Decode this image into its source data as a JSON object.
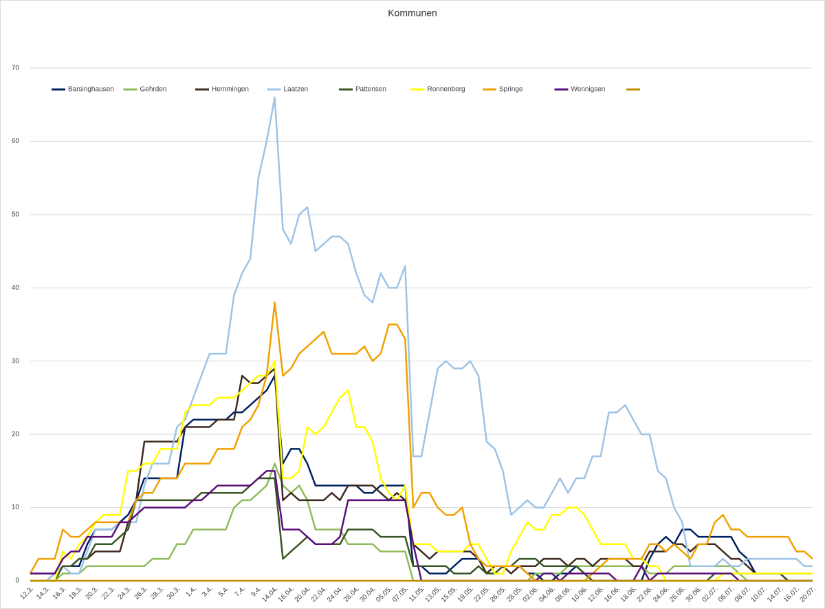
{
  "chart_data": {
    "type": "line",
    "title": "Kommunen",
    "categories": [
      "12.3.",
      null,
      "14.3.",
      null,
      "16.3.",
      null,
      "18.3.",
      null,
      "20.3.",
      null,
      "22.3.",
      null,
      "24.3.",
      null,
      "26.3.",
      null,
      "28.3.",
      null,
      "30.3.",
      null,
      "1.4.",
      null,
      "3.4.",
      null,
      "5.4.",
      null,
      "7.4.",
      null,
      "9.4.",
      null,
      "14.04.",
      null,
      "16.04.",
      null,
      "20.04.",
      null,
      "22.04.",
      null,
      "24.04.",
      null,
      "28.04.",
      null,
      "30.04.",
      null,
      "05.05.",
      null,
      "07.05.",
      null,
      "11.05.",
      null,
      "13.05.",
      null,
      "15.05.",
      null,
      "19.05.",
      null,
      "22.05.",
      null,
      "26.05.",
      null,
      "28.05.",
      null,
      "02.06.",
      null,
      "04.06.",
      null,
      "08.06.",
      null,
      "10.06.",
      null,
      "12.06.",
      null,
      "16.06.",
      null,
      "18.06.",
      null,
      "22.06.",
      null,
      "24.06.",
      null,
      "26.06.",
      null,
      "30.06.",
      null,
      "02.07.",
      null,
      "06.07.",
      null,
      "08.07.",
      null,
      "10.07.",
      null,
      "14.07.",
      null,
      "16.07.",
      null,
      "20.07."
    ],
    "series": [
      {
        "name": "Barsinghausen",
        "color": "#002060",
        "values": [
          1,
          1,
          1,
          1,
          2,
          2,
          2,
          5,
          7,
          7,
          7,
          8,
          9,
          11,
          14,
          14,
          14,
          14,
          14,
          21,
          22,
          22,
          22,
          22,
          22,
          23,
          23,
          24,
          25,
          26,
          28,
          16,
          18,
          18,
          16,
          13,
          13,
          13,
          13,
          13,
          13,
          12,
          12,
          13,
          13,
          13,
          13,
          2,
          2,
          1,
          1,
          1,
          2,
          3,
          3,
          3,
          1,
          2,
          2,
          2,
          2,
          1,
          1,
          0,
          0,
          1,
          1,
          2,
          1,
          0,
          0,
          0,
          0,
          0,
          0,
          0,
          3,
          5,
          6,
          5,
          7,
          7,
          6,
          6,
          6,
          6,
          6,
          4,
          3,
          1,
          1,
          1,
          1,
          0,
          0,
          0,
          0
        ]
      },
      {
        "name": "Gehrden",
        "color": "#8fbc5a",
        "values": [
          0,
          0,
          0,
          0,
          1,
          1,
          1,
          2,
          2,
          2,
          2,
          2,
          2,
          2,
          2,
          3,
          3,
          3,
          5,
          5,
          7,
          7,
          7,
          7,
          7,
          10,
          11,
          11,
          12,
          13,
          16,
          13,
          12,
          13,
          11,
          7,
          7,
          7,
          7,
          5,
          5,
          5,
          5,
          4,
          4,
          4,
          4,
          0,
          0,
          0,
          0,
          0,
          0,
          0,
          0,
          0,
          0,
          0,
          0,
          0,
          0,
          0,
          1,
          1,
          1,
          1,
          2,
          2,
          2,
          2,
          2,
          2,
          2,
          2,
          2,
          2,
          1,
          1,
          1,
          2,
          2,
          2,
          2,
          2,
          2,
          2,
          2,
          1,
          0,
          0,
          0,
          0,
          0,
          0,
          0,
          0,
          0
        ]
      },
      {
        "name": "Hemmingen",
        "color": "#3f2a20",
        "values": [
          0,
          0,
          0,
          1,
          2,
          2,
          3,
          3,
          4,
          4,
          4,
          4,
          8,
          11,
          19,
          19,
          19,
          19,
          19,
          21,
          21,
          21,
          21,
          22,
          22,
          22,
          28,
          27,
          27,
          28,
          29,
          11,
          12,
          11,
          11,
          11,
          11,
          12,
          11,
          13,
          13,
          13,
          13,
          12,
          11,
          12,
          11,
          5,
          4,
          3,
          4,
          4,
          4,
          4,
          4,
          3,
          1,
          2,
          2,
          1,
          2,
          2,
          2,
          3,
          3,
          3,
          2,
          3,
          3,
          2,
          3,
          3,
          3,
          3,
          2,
          2,
          4,
          4,
          4,
          5,
          5,
          4,
          5,
          5,
          5,
          4,
          3,
          3,
          2,
          1,
          1,
          1,
          1,
          1,
          1,
          1,
          1
        ]
      },
      {
        "name": "Laatzen",
        "color": "#9dc3e6",
        "values": [
          0,
          0,
          0,
          1,
          2,
          1,
          1,
          4,
          7,
          7,
          7,
          8,
          8,
          8,
          13,
          16,
          16,
          16,
          21,
          22,
          25,
          28,
          31,
          31,
          31,
          39,
          42,
          44,
          55,
          60,
          66,
          48,
          46,
          50,
          51,
          45,
          46,
          47,
          47,
          46,
          42,
          39,
          38,
          42,
          40,
          40,
          43,
          17,
          17,
          23,
          29,
          30,
          29,
          29,
          30,
          28,
          19,
          18,
          15,
          9,
          10,
          11,
          10,
          10,
          12,
          14,
          12,
          14,
          14,
          17,
          17,
          23,
          23,
          24,
          22,
          20,
          20,
          15,
          14,
          10,
          8,
          2,
          2,
          2,
          2,
          3,
          2,
          2,
          3,
          3,
          3,
          3,
          3,
          3,
          3,
          2,
          2
        ]
      },
      {
        "name": "Pattensen",
        "color": "#375623",
        "values": [
          0,
          0,
          0,
          0,
          2,
          2,
          3,
          3,
          5,
          5,
          5,
          6,
          7,
          11,
          11,
          11,
          11,
          11,
          11,
          11,
          11,
          12,
          12,
          12,
          12,
          12,
          12,
          13,
          14,
          14,
          14,
          3,
          4,
          5,
          6,
          5,
          5,
          5,
          5,
          7,
          7,
          7,
          7,
          6,
          6,
          6,
          6,
          2,
          2,
          2,
          2,
          2,
          1,
          1,
          1,
          2,
          1,
          1,
          2,
          2,
          3,
          3,
          3,
          2,
          2,
          2,
          2,
          2,
          1,
          0,
          0,
          0,
          0,
          0,
          0,
          0,
          0,
          0,
          0,
          0,
          0,
          0,
          0,
          0,
          1,
          1,
          1,
          1,
          1,
          1,
          1,
          1,
          1,
          0,
          0,
          0,
          0
        ]
      },
      {
        "name": "Ronnenberg",
        "color": "#ffff00",
        "values": [
          0,
          0,
          0,
          0,
          4,
          3,
          5,
          6,
          8,
          9,
          9,
          9,
          15,
          15,
          16,
          16,
          18,
          18,
          18,
          23,
          24,
          24,
          24,
          25,
          25,
          25,
          26,
          27,
          28,
          28,
          30,
          14,
          14,
          15,
          21,
          20,
          21,
          23,
          25,
          26,
          21,
          21,
          19,
          14,
          12,
          11,
          13,
          5,
          5,
          5,
          4,
          4,
          4,
          4,
          5,
          5,
          3,
          1,
          1,
          4,
          6,
          8,
          7,
          7,
          9,
          9,
          10,
          10,
          9,
          7,
          5,
          5,
          5,
          5,
          3,
          3,
          2,
          2,
          0,
          0,
          0,
          0,
          0,
          0,
          0,
          1,
          1,
          1,
          1,
          1,
          1,
          1,
          1,
          1,
          1,
          1,
          1
        ]
      },
      {
        "name": "Springe",
        "color": "#f0a000",
        "values": [
          1,
          3,
          3,
          3,
          7,
          6,
          6,
          7,
          8,
          8,
          8,
          8,
          8,
          11,
          12,
          12,
          14,
          14,
          14,
          16,
          16,
          16,
          16,
          18,
          18,
          18,
          21,
          22,
          24,
          28,
          38,
          28,
          29,
          31,
          32,
          33,
          34,
          31,
          31,
          31,
          31,
          32,
          30,
          31,
          35,
          35,
          33,
          10,
          12,
          12,
          10,
          9,
          9,
          10,
          5,
          3,
          2,
          2,
          2,
          2,
          2,
          1,
          0,
          0,
          0,
          0,
          0,
          0,
          0,
          1,
          2,
          3,
          3,
          3,
          3,
          3,
          5,
          5,
          4,
          5,
          4,
          3,
          5,
          5,
          8,
          9,
          7,
          7,
          6,
          6,
          6,
          6,
          6,
          6,
          4,
          4,
          3
        ]
      },
      {
        "name": "Wennigsen",
        "color": "#5b0f7a",
        "values": [
          1,
          1,
          1,
          1,
          3,
          4,
          4,
          6,
          6,
          6,
          6,
          8,
          8,
          9,
          10,
          10,
          10,
          10,
          10,
          10,
          11,
          11,
          12,
          13,
          13,
          13,
          13,
          13,
          14,
          15,
          15,
          7,
          7,
          7,
          6,
          5,
          5,
          5,
          6,
          11,
          11,
          11,
          11,
          11,
          11,
          11,
          11,
          5,
          0,
          0,
          0,
          0,
          0,
          0,
          0,
          0,
          0,
          0,
          0,
          0,
          0,
          0,
          0,
          1,
          1,
          0,
          1,
          1,
          1,
          1,
          1,
          1,
          0,
          0,
          0,
          2,
          0,
          1,
          1,
          1,
          1,
          1,
          1,
          1,
          1,
          1,
          1,
          0,
          0,
          0,
          0,
          0,
          0,
          0,
          0,
          0,
          0
        ]
      },
      {
        "color": "#bf8f00",
        "values": [
          0,
          0,
          0,
          0,
          0,
          0,
          0,
          0,
          0,
          0,
          0,
          0,
          0,
          0,
          0,
          0,
          0,
          0,
          0,
          0,
          0,
          0,
          0,
          0,
          0,
          0,
          0,
          0,
          0,
          0,
          0,
          0,
          0,
          0,
          0,
          0,
          0,
          0,
          0,
          0,
          0,
          0,
          0,
          0,
          0,
          0,
          0,
          0,
          0,
          0,
          0,
          0,
          0,
          0,
          0,
          0,
          0,
          0,
          0,
          0,
          0,
          0,
          0,
          0,
          0,
          0,
          0,
          0,
          0,
          0,
          0,
          0,
          0,
          0,
          0,
          0,
          0,
          0,
          0,
          0,
          0,
          0,
          0,
          0,
          0,
          0,
          0,
          0,
          0,
          0,
          0,
          0,
          0,
          0,
          0,
          0,
          0
        ]
      }
    ],
    "ylim": [
      0,
      70
    ],
    "yticks": [
      0,
      10,
      20,
      30,
      40,
      50,
      60,
      70
    ],
    "grid": true,
    "legend": "top-left"
  }
}
